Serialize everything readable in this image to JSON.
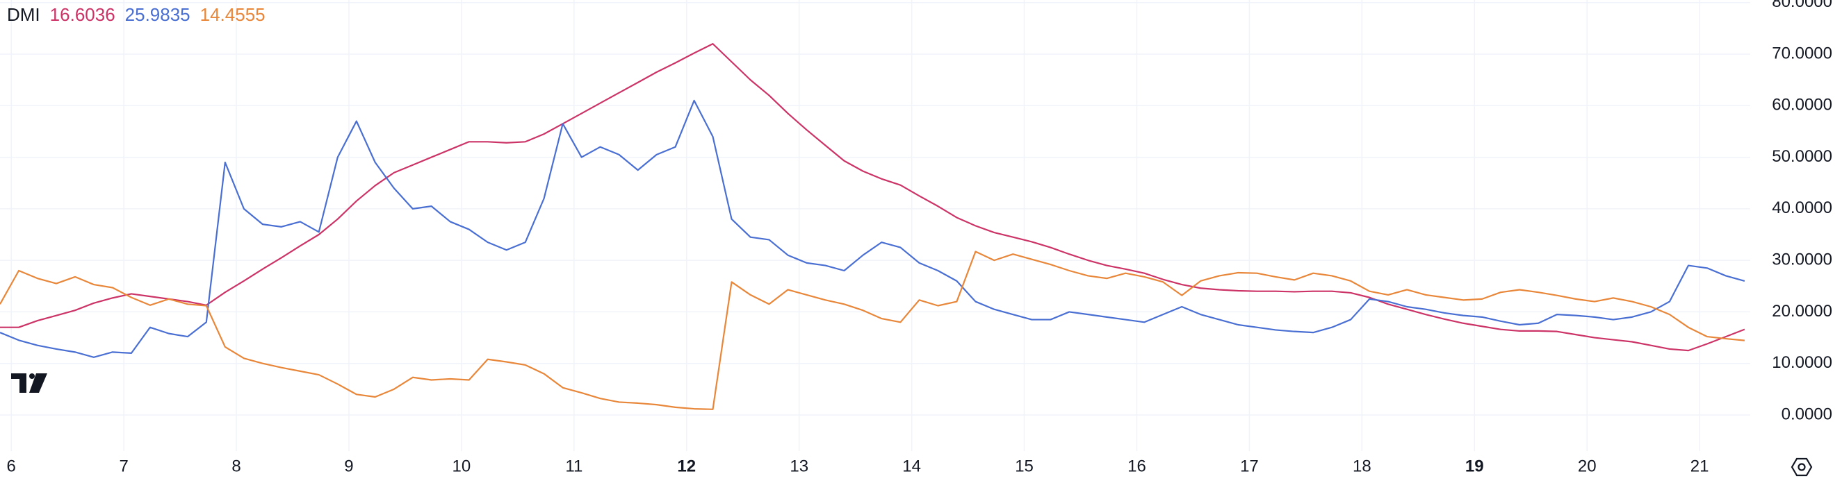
{
  "chart_data": {
    "type": "line",
    "title": "DMI",
    "x": [
      5.9,
      6.067,
      6.233,
      6.4,
      6.567,
      6.733,
      6.9,
      7.067,
      7.233,
      7.4,
      7.567,
      7.733,
      7.9,
      8.067,
      8.233,
      8.4,
      8.567,
      8.733,
      8.9,
      9.067,
      9.233,
      9.4,
      9.567,
      9.733,
      9.9,
      10.067,
      10.233,
      10.4,
      10.567,
      10.733,
      10.9,
      11.067,
      11.233,
      11.4,
      11.567,
      11.733,
      11.9,
      12.067,
      12.233,
      12.4,
      12.567,
      12.733,
      12.9,
      13.067,
      13.233,
      13.4,
      13.567,
      13.733,
      13.9,
      14.067,
      14.233,
      14.4,
      14.567,
      14.733,
      14.9,
      15.067,
      15.233,
      15.4,
      15.567,
      15.733,
      15.9,
      16.067,
      16.233,
      16.4,
      16.567,
      16.733,
      16.9,
      17.067,
      17.233,
      17.4,
      17.567,
      17.733,
      17.9,
      18.067,
      18.233,
      18.4,
      18.567,
      18.733,
      18.9,
      19.067,
      19.233,
      19.4,
      19.567,
      19.733,
      19.9,
      20.067,
      20.233,
      20.4,
      20.567,
      20.733,
      20.9,
      21.067,
      21.233,
      21.4
    ],
    "series": [
      {
        "legend_value": "16.6036",
        "color": "#cc3366",
        "values": [
          17,
          17,
          18.3,
          19.3,
          20.3,
          21.7,
          22.7,
          23.5,
          23,
          22.5,
          22,
          21.3,
          23.8,
          26,
          28.3,
          30.5,
          32.8,
          35,
          38,
          41.5,
          44.5,
          47,
          48.5,
          50,
          51.5,
          53,
          53,
          52.8,
          53,
          54.5,
          56.5,
          58.5,
          60.5,
          62.5,
          64.5,
          66.5,
          68.3,
          70.2,
          72,
          68.5,
          65,
          62,
          58.5,
          55.3,
          52.3,
          49.3,
          47.3,
          45.8,
          44.6,
          42.5,
          40.5,
          38.3,
          36.7,
          35.4,
          34.5,
          33.6,
          32.5,
          31.2,
          30,
          29,
          28.3,
          27.5,
          26.3,
          25.3,
          24.6,
          24.3,
          24.1,
          24,
          24,
          23.9,
          24,
          24,
          23.7,
          22.8,
          21.5,
          20.5,
          19.5,
          18.6,
          17.8,
          17.2,
          16.6,
          16.3,
          16.3,
          16.2,
          15.6,
          15,
          14.6,
          14.2,
          13.5,
          12.8,
          12.5,
          13.8,
          15.2,
          16.6036
        ]
      },
      {
        "legend_value": "25.9835",
        "color": "#4a6fd3",
        "values": [
          16,
          14.5,
          13.5,
          12.8,
          12.2,
          11.2,
          12.2,
          12,
          17,
          15.8,
          15.2,
          18,
          49,
          40,
          37,
          36.5,
          37.5,
          35.5,
          50,
          57,
          49,
          44,
          40,
          40.5,
          37.5,
          36,
          33.5,
          32,
          33.5,
          42,
          56.5,
          50,
          52,
          50.5,
          47.5,
          50.5,
          52,
          61,
          54,
          38,
          34.5,
          34,
          31,
          29.5,
          29,
          28,
          31,
          33.5,
          32.5,
          29.5,
          28,
          26,
          22,
          20.5,
          19.5,
          18.5,
          18.5,
          20,
          19.5,
          19,
          18.5,
          18,
          19.5,
          21,
          19.5,
          18.5,
          17.5,
          17,
          16.5,
          16.2,
          16,
          17,
          18.5,
          22.5,
          22,
          21,
          20.5,
          19.8,
          19.3,
          19,
          18.2,
          17.5,
          17.8,
          19.5,
          19.3,
          19,
          18.5,
          19,
          20,
          22,
          29,
          28.5,
          27,
          25.9835
        ]
      },
      {
        "legend_value": "14.4555",
        "color": "#e8873a",
        "values": [
          21.5,
          28,
          26.5,
          25.5,
          26.8,
          25.3,
          24.7,
          22.8,
          21.3,
          22.5,
          21.5,
          21.2,
          13.2,
          11,
          10,
          9.2,
          8.5,
          7.8,
          6,
          4,
          3.5,
          5,
          7.3,
          6.8,
          7,
          6.8,
          10.8,
          10.3,
          9.7,
          8,
          5.3,
          4.3,
          3.2,
          2.5,
          2.3,
          2,
          1.5,
          1.2,
          1.1,
          25.8,
          23.3,
          21.5,
          24.3,
          23.3,
          22.3,
          21.5,
          20.3,
          18.7,
          18,
          22.3,
          21.2,
          22,
          31.7,
          30,
          31.2,
          30.2,
          29.2,
          28,
          27,
          26.5,
          27.5,
          26.8,
          25.8,
          23.2,
          26,
          27,
          27.6,
          27.5,
          26.8,
          26.2,
          27.5,
          27,
          26,
          24,
          23.3,
          24.3,
          23.3,
          22.8,
          22.3,
          22.5,
          23.8,
          24.3,
          23.8,
          23.2,
          22.5,
          22,
          22.7,
          22,
          21,
          19.5,
          17,
          15.2,
          14.8,
          14.4555
        ]
      }
    ],
    "xlim": [
      5.9,
      21.45
    ],
    "xticks": [
      6,
      7,
      8,
      9,
      10,
      11,
      12,
      13,
      14,
      15,
      16,
      17,
      18,
      19,
      20,
      21
    ],
    "bold_xticks": [
      12,
      19
    ],
    "ylim": [
      -7,
      80.5
    ],
    "yticks": [
      {
        "value": 0,
        "label": "0.0000"
      },
      {
        "value": 10,
        "label": "10.0000"
      },
      {
        "value": 20,
        "label": "20.0000"
      },
      {
        "value": 30,
        "label": "30.0000"
      },
      {
        "value": 40,
        "label": "40.0000"
      },
      {
        "value": 50,
        "label": "50.0000"
      },
      {
        "value": 60,
        "label": "60.0000"
      },
      {
        "value": 70,
        "label": "70.0000"
      },
      {
        "value": 80,
        "label": "80.0000"
      }
    ],
    "grid": true
  }
}
